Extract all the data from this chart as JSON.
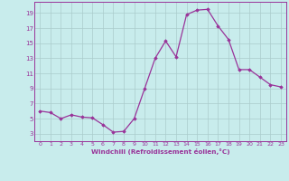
{
  "x": [
    0,
    1,
    2,
    3,
    4,
    5,
    6,
    7,
    8,
    9,
    10,
    11,
    12,
    13,
    14,
    15,
    16,
    17,
    18,
    19,
    20,
    21,
    22,
    23
  ],
  "y": [
    6.0,
    5.8,
    5.0,
    5.5,
    5.2,
    5.1,
    4.2,
    3.2,
    3.3,
    5.0,
    9.0,
    13.0,
    15.3,
    13.2,
    18.8,
    19.4,
    19.5,
    17.3,
    15.5,
    11.5,
    11.5,
    10.5,
    9.5,
    9.2
  ],
  "line_color": "#993399",
  "marker": "D",
  "marker_size": 1.8,
  "bg_color": "#c8ecec",
  "grid_color": "#aacccc",
  "xlabel": "Windchill (Refroidissement éolien,°C)",
  "xlabel_color": "#993399",
  "tick_color": "#993399",
  "yticks": [
    3,
    5,
    7,
    9,
    11,
    13,
    15,
    17,
    19
  ],
  "xticks": [
    0,
    1,
    2,
    3,
    4,
    5,
    6,
    7,
    8,
    9,
    10,
    11,
    12,
    13,
    14,
    15,
    16,
    17,
    18,
    19,
    20,
    21,
    22,
    23
  ],
  "ylim": [
    2.0,
    20.5
  ],
  "xlim": [
    -0.5,
    23.5
  ]
}
